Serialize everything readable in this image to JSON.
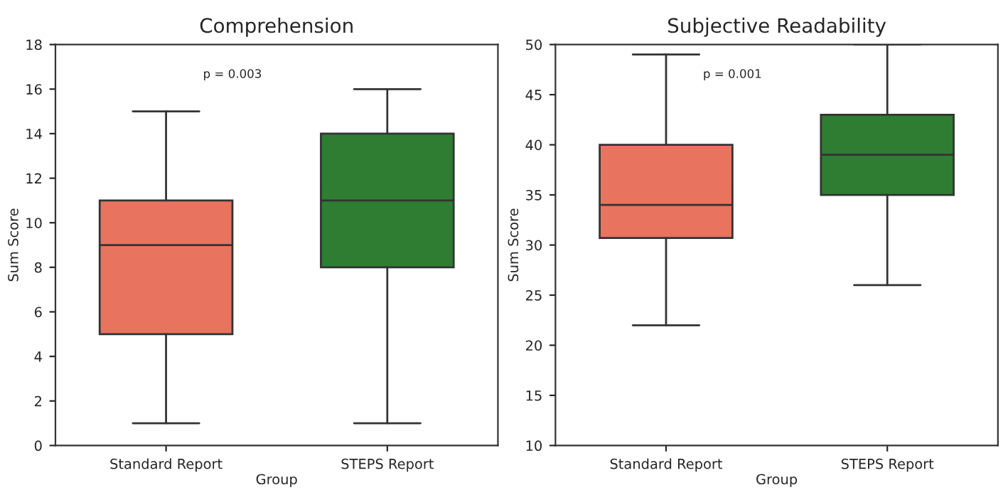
{
  "chart_data": [
    {
      "type": "box",
      "title": "Comprehension",
      "xlabel": "Group",
      "ylabel": "Sum Score",
      "categories": [
        "Standard Report",
        "STEPS Report"
      ],
      "colors": [
        "#e8735f",
        "#2e7d32"
      ],
      "boxes": [
        {
          "low": 1,
          "q1": 5,
          "median": 9,
          "q3": 11,
          "high": 15
        },
        {
          "low": 1,
          "q1": 8,
          "median": 11,
          "q3": 14,
          "high": 16
        }
      ],
      "ylim": [
        0,
        18
      ],
      "yticks": [
        0,
        2,
        4,
        6,
        8,
        10,
        12,
        14,
        16,
        18
      ],
      "grid": false,
      "legend": false,
      "annotations": [
        "p = 0.003"
      ]
    },
    {
      "type": "box",
      "title": "Subjective Readability",
      "xlabel": "Group",
      "ylabel": "Sum Score",
      "categories": [
        "Standard Report",
        "STEPS Report"
      ],
      "colors": [
        "#e8735f",
        "#2e7d32"
      ],
      "boxes": [
        {
          "low": 22,
          "q1": 30.7,
          "median": 34,
          "q3": 40,
          "high": 49
        },
        {
          "low": 26,
          "q1": 35,
          "median": 39,
          "q3": 43,
          "high": 50
        }
      ],
      "ylim": [
        10,
        50
      ],
      "yticks": [
        10,
        15,
        20,
        25,
        30,
        35,
        40,
        45,
        50
      ],
      "grid": false,
      "legend": false,
      "annotations": [
        "p = 0.001"
      ]
    }
  ]
}
